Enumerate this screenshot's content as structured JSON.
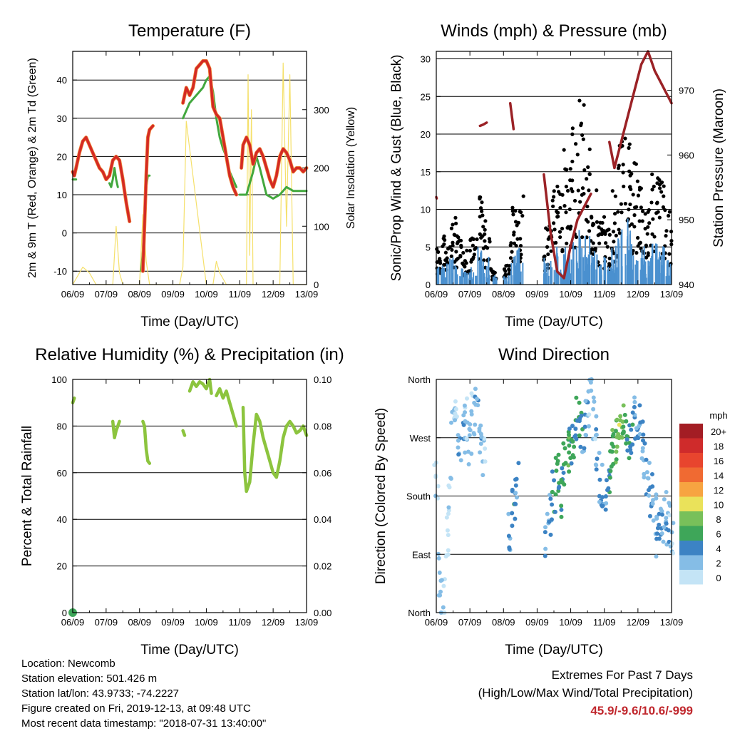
{
  "panels": {
    "temperature": {
      "title": "Temperature (F)",
      "xlabel": "Time (Day/UTC)",
      "ylabel_left": "2m & 9m T (Red, Orange) & 2m Td (Green)",
      "ylabel_right": "Solar Insolation (Yellow)"
    },
    "winds": {
      "title": "Winds (mph) & Pressure (mb)",
      "xlabel": "Time (Day/UTC)",
      "ylabel_left": "Sonic/Prop Wind & Gust (Blue, Black)",
      "ylabel_right": "Station Pressure (Maroon)"
    },
    "humidity": {
      "title": "Relative Humidity (%) & Precipitation (in)",
      "xlabel": "Time (Day/UTC)",
      "ylabel_left": "Percent & Total Rainfall"
    },
    "direction": {
      "title": "Wind Direction",
      "xlabel": "Time (Day/UTC)",
      "ylabel_left": "Direction (Colored By Speed)"
    }
  },
  "legend": {
    "title": "mph",
    "labels": [
      "20+",
      "18",
      "16",
      "14",
      "12",
      "10",
      "8",
      "6",
      "4",
      "2",
      "0"
    ],
    "colors": [
      "#a31d24",
      "#cf2b2b",
      "#e8452e",
      "#f06a32",
      "#f7a441",
      "#eae25a",
      "#78c05a",
      "#3ea659",
      "#3c83c4",
      "#85bde6",
      "#c4e4f6"
    ]
  },
  "info": {
    "location": "Location: Newcomb",
    "elevation": "Station elevation: 501.426 m",
    "latlon": "Station lat/lon: 43.9733; -74.2227",
    "created": "Figure created on Fri, 2019-12-13, at 09:48 UTC",
    "recent": "Most recent data timestamp: \"2018-07-31 13:40:00\""
  },
  "extremes": {
    "line1": "Extremes For Past 7 Days",
    "line2": "(High/Low/Max Wind/Total Precipitation)",
    "values": "45.9/-9.6/10.6/-999"
  },
  "chart_data": [
    {
      "type": "line",
      "title": "Temperature (F)",
      "xlabel": "Time (Day/UTC)",
      "ylabel": "2m & 9m T (Red, Orange) & 2m Td (Green)",
      "y2label": "Solar Insolation (Yellow)",
      "x_ticks": [
        "06/09",
        "07/09",
        "08/09",
        "09/09",
        "10/09",
        "11/09",
        "12/09",
        "13/09"
      ],
      "ylim": [
        -13.5,
        47.5
      ],
      "y_ticks": [
        -10,
        0,
        10,
        20,
        30,
        40
      ],
      "y2lim": [
        0,
        400
      ],
      "y2_ticks": [
        0,
        100,
        200,
        300
      ],
      "grid": true,
      "series": [
        {
          "name": "2m & 9m T",
          "color": "#d42a24",
          "x": [
            6.0,
            6.05,
            6.1,
            6.2,
            6.3,
            6.4,
            6.5,
            6.6,
            6.7,
            6.8,
            6.9,
            7.0,
            7.1,
            7.2,
            7.3,
            7.4,
            7.5,
            7.6,
            7.7,
            null,
            8.1,
            8.15,
            8.2,
            8.25,
            8.3,
            8.4,
            null,
            9.3,
            9.4,
            9.5,
            9.6,
            9.7,
            9.8,
            9.9,
            10.0,
            10.1,
            10.2,
            10.3,
            10.4,
            10.5,
            10.6,
            10.7,
            10.8,
            10.9,
            null,
            11.05,
            11.1,
            11.2,
            11.3,
            11.4,
            11.5,
            11.6,
            11.7,
            11.8,
            11.9,
            12.0,
            12.1,
            12.2,
            12.3,
            12.4,
            12.5,
            12.6,
            12.7,
            12.8,
            12.9,
            13.0
          ],
          "y": [
            16,
            15,
            17,
            21,
            24,
            25,
            23,
            21,
            19,
            17,
            16,
            14,
            15,
            19,
            20,
            19,
            14,
            8,
            3,
            null,
            -10,
            2,
            15,
            25,
            27,
            28,
            null,
            34,
            38,
            36,
            38,
            43,
            44,
            45,
            45,
            43,
            33,
            31,
            30,
            25,
            20,
            15,
            12,
            10,
            null,
            17,
            23,
            25,
            23,
            18,
            21,
            22,
            20,
            17,
            14,
            12,
            15,
            20,
            22,
            21,
            19,
            16,
            17,
            17,
            16,
            17
          ]
        },
        {
          "name": "2m Td",
          "color": "#42a83e",
          "x": [
            6.0,
            6.1,
            null,
            7.1,
            7.15,
            7.2,
            7.25,
            7.3,
            7.35,
            null,
            8.05,
            8.1,
            8.15,
            8.2,
            8.25,
            8.3,
            null,
            9.3,
            9.5,
            9.7,
            9.9,
            10.0,
            10.1,
            10.2,
            10.3,
            10.4,
            10.5,
            10.6,
            10.7,
            10.8,
            10.9,
            null,
            11.0,
            11.2,
            11.4,
            11.5,
            11.6,
            11.8,
            12.0,
            12.2,
            12.4,
            12.6,
            12.8,
            13.0
          ],
          "y": [
            14,
            14,
            null,
            13,
            12,
            14,
            17,
            14,
            12,
            null,
            -10,
            -5,
            5,
            12,
            15,
            15,
            null,
            30,
            34,
            36,
            38,
            40,
            41,
            37,
            30,
            25,
            22,
            20,
            16,
            14,
            12,
            null,
            10,
            10,
            16,
            20,
            17,
            10,
            9,
            10,
            12,
            11,
            11,
            11
          ]
        },
        {
          "name": "Solar Insolation",
          "color": "#f5e06b",
          "x": [
            6.0,
            6.3,
            6.5,
            6.7,
            6.9,
            7.2,
            7.3,
            7.4,
            7.5,
            7.9,
            8.0,
            8.1,
            8.2,
            8.3,
            8.5,
            9.0,
            9.2,
            9.3,
            9.4,
            10.0,
            10.2,
            10.3,
            10.4,
            10.6,
            11.0,
            11.2,
            11.25,
            11.3,
            11.35,
            11.4,
            11.5,
            11.9,
            12.2,
            12.3,
            12.4,
            12.5,
            12.6,
            12.9,
            13.0
          ],
          "y": [
            0,
            30,
            20,
            0,
            0,
            0,
            100,
            20,
            0,
            0,
            0,
            120,
            40,
            0,
            0,
            0,
            0,
            30,
            280,
            0,
            0,
            40,
            20,
            0,
            0,
            0,
            360,
            50,
            300,
            0,
            0,
            0,
            0,
            380,
            100,
            360,
            0,
            0,
            0
          ]
        }
      ]
    },
    {
      "type": "scatter",
      "title": "Winds (mph) & Pressure (mb)",
      "xlabel": "Time (Day/UTC)",
      "ylabel": "Sonic/Prop Wind & Gust (Blue, Black)",
      "y2label": "Station Pressure (Maroon)",
      "x_ticks": [
        "06/09",
        "07/09",
        "08/09",
        "09/09",
        "10/09",
        "11/09",
        "12/09",
        "13/09"
      ],
      "ylim": [
        0,
        31
      ],
      "y_ticks": [
        0,
        5,
        10,
        15,
        20,
        25,
        30
      ],
      "y2lim": [
        940,
        976
      ],
      "y2_ticks": [
        940,
        950,
        960,
        970
      ],
      "grid": true,
      "series": [
        {
          "name": "Wind",
          "color": "#4a90cf",
          "x": [
            6.0,
            6.2,
            6.4,
            6.6,
            6.8,
            7.0,
            7.2,
            7.4,
            7.6,
            7.8,
            8.0,
            8.2,
            8.4,
            8.6,
            8.8,
            9.0,
            9.2,
            9.4,
            9.6,
            9.8,
            10.0,
            10.2,
            10.4,
            10.6,
            10.8,
            11.0,
            11.2,
            11.4,
            11.6,
            11.8,
            12.0,
            12.2,
            12.4,
            12.6,
            12.8,
            13.0
          ],
          "y": [
            2,
            2.5,
            3,
            2,
            1.5,
            2,
            4,
            3,
            1,
            0.5,
            1,
            3,
            4,
            1,
            0.5,
            0,
            3,
            4,
            3.5,
            4,
            4.5,
            6,
            5,
            4,
            3,
            3,
            4,
            6,
            8,
            5,
            4,
            3,
            5,
            4,
            3,
            3
          ]
        },
        {
          "name": "Gust",
          "color": "#000000",
          "x": [
            6.0,
            6.2,
            6.4,
            6.6,
            6.8,
            7.0,
            7.2,
            7.4,
            7.6,
            7.8,
            8.0,
            8.2,
            8.4,
            8.6,
            8.8,
            9.0,
            9.2,
            9.4,
            9.6,
            9.8,
            10.0,
            10.2,
            10.4,
            10.6,
            10.8,
            11.0,
            11.2,
            11.4,
            11.6,
            11.8,
            12.0,
            12.2,
            12.4,
            12.6,
            12.8,
            13.0
          ],
          "y": [
            4,
            5,
            7,
            5,
            4,
            5,
            9,
            7,
            2,
            1,
            2,
            8,
            10,
            3,
            1,
            0,
            6,
            10,
            12,
            14,
            16,
            20,
            14,
            10,
            7,
            6,
            10,
            15,
            18,
            13,
            10,
            8,
            12,
            11,
            8,
            7
          ]
        },
        {
          "name": "Station Pressure",
          "color": "#9b2226",
          "x": [
            6.0,
            6.01,
            null,
            7.3,
            7.4,
            7.5,
            null,
            8.2,
            8.3,
            null,
            9.2,
            9.4,
            9.6,
            9.8,
            10.0,
            10.2,
            10.4,
            10.6,
            null,
            11.15,
            11.3,
            11.5,
            11.7,
            11.9,
            12.1,
            12.3,
            12.5,
            12.7,
            12.9,
            13.0
          ],
          "y": [
            953.5,
            953.3,
            null,
            964.5,
            964.7,
            965,
            null,
            968,
            964,
            null,
            957,
            948,
            942,
            941,
            946,
            950,
            952,
            954,
            null,
            962,
            958,
            962,
            966,
            970,
            974,
            976,
            973,
            971,
            969,
            968
          ]
        }
      ]
    },
    {
      "type": "line",
      "title": "Relative Humidity (%) & Precipitation (in)",
      "xlabel": "Time (Day/UTC)",
      "ylabel": "Percent & Total Rainfall",
      "x_ticks": [
        "06/09",
        "07/09",
        "08/09",
        "09/09",
        "10/09",
        "11/09",
        "12/09",
        "13/09"
      ],
      "ylim": [
        0,
        100
      ],
      "y_ticks": [
        0,
        20,
        40,
        60,
        80,
        100
      ],
      "y2lim": [
        0,
        0.1
      ],
      "y2_ticks": [
        "0.00",
        "0.02",
        "0.04",
        "0.06",
        "0.08",
        "0.10"
      ],
      "grid": true,
      "series": [
        {
          "name": "Relative Humidity",
          "color": "#8cc43e",
          "x": [
            6.0,
            6.05,
            null,
            7.2,
            7.25,
            7.3,
            7.35,
            7.4,
            null,
            8.1,
            8.15,
            8.2,
            8.25,
            8.3,
            null,
            9.3,
            9.35,
            null,
            9.5,
            9.6,
            9.7,
            9.8,
            9.9,
            10.0,
            10.1,
            10.15,
            null,
            10.3,
            10.4,
            10.5,
            10.6,
            10.7,
            10.8,
            10.9,
            null,
            11.1,
            11.15,
            11.2,
            11.3,
            11.4,
            11.5,
            11.6,
            11.7,
            11.8,
            11.9,
            12.0,
            12.1,
            12.2,
            12.3,
            12.4,
            12.5,
            12.6,
            12.7,
            12.8,
            12.9,
            13.0
          ],
          "y": [
            90,
            92,
            null,
            82,
            75,
            78,
            80,
            82,
            null,
            82,
            80,
            70,
            65,
            64,
            null,
            78,
            76,
            null,
            95,
            99,
            97,
            99,
            98,
            96,
            100,
            94,
            null,
            93,
            96,
            92,
            95,
            90,
            85,
            80,
            null,
            88,
            60,
            52,
            56,
            72,
            85,
            82,
            75,
            70,
            65,
            60,
            58,
            65,
            75,
            80,
            82,
            80,
            77,
            78,
            80,
            76
          ]
        },
        {
          "name": "Precipitation",
          "color": "#3ea659",
          "x": [
            6.0,
            6.02
          ],
          "y": [
            0,
            0
          ]
        }
      ]
    },
    {
      "type": "scatter",
      "title": "Wind Direction",
      "xlabel": "Time (Day/UTC)",
      "ylabel": "Direction (Colored By Speed)",
      "x_ticks": [
        "06/09",
        "07/09",
        "08/09",
        "09/09",
        "10/09",
        "11/09",
        "12/09",
        "13/09"
      ],
      "y_ticks": [
        "North",
        "East",
        "South",
        "West",
        "North"
      ],
      "ylim": [
        0,
        360
      ],
      "grid": true,
      "series": [
        {
          "name": "Wind Direction",
          "x": [
            6.0,
            6.1,
            6.2,
            6.3,
            6.4,
            6.5,
            6.6,
            6.7,
            6.8,
            6.9,
            7.0,
            7.1,
            7.2,
            7.3,
            7.4,
            8.2,
            8.3,
            8.4,
            9.3,
            9.4,
            9.5,
            9.6,
            9.7,
            9.8,
            9.9,
            10.0,
            10.1,
            10.2,
            10.3,
            10.4,
            10.5,
            10.6,
            10.7,
            10.8,
            10.9,
            11.0,
            11.1,
            11.2,
            11.3,
            11.4,
            11.5,
            11.6,
            11.7,
            11.8,
            11.9,
            12.0,
            12.1,
            12.2,
            12.3,
            12.4,
            12.5,
            12.6,
            12.7,
            12.8,
            12.9,
            13.0
          ],
          "y": [
            200,
            60,
            20,
            120,
            180,
            300,
            330,
            250,
            280,
            300,
            260,
            310,
            320,
            280,
            240,
            120,
            160,
            200,
            120,
            150,
            190,
            210,
            180,
            230,
            250,
            260,
            270,
            300,
            290,
            280,
            310,
            330,
            300,
            250,
            200,
            150,
            210,
            240,
            250,
            280,
            300,
            290,
            270,
            280,
            300,
            290,
            260,
            240,
            210,
            180,
            150,
            120,
            130,
            160,
            140,
            120
          ],
          "speed": [
            1,
            2,
            1,
            0,
            1,
            2,
            2,
            3,
            3,
            2,
            3,
            2,
            3,
            3,
            2,
            4,
            5,
            4,
            3,
            4,
            5,
            6,
            5,
            6,
            7,
            6,
            5,
            6,
            5,
            4,
            3,
            2,
            2,
            3,
            4,
            4,
            5,
            6,
            7,
            8,
            9,
            7,
            6,
            5,
            4,
            4,
            3,
            3,
            3,
            4,
            3,
            4,
            3,
            3,
            3,
            2
          ]
        }
      ]
    }
  ]
}
